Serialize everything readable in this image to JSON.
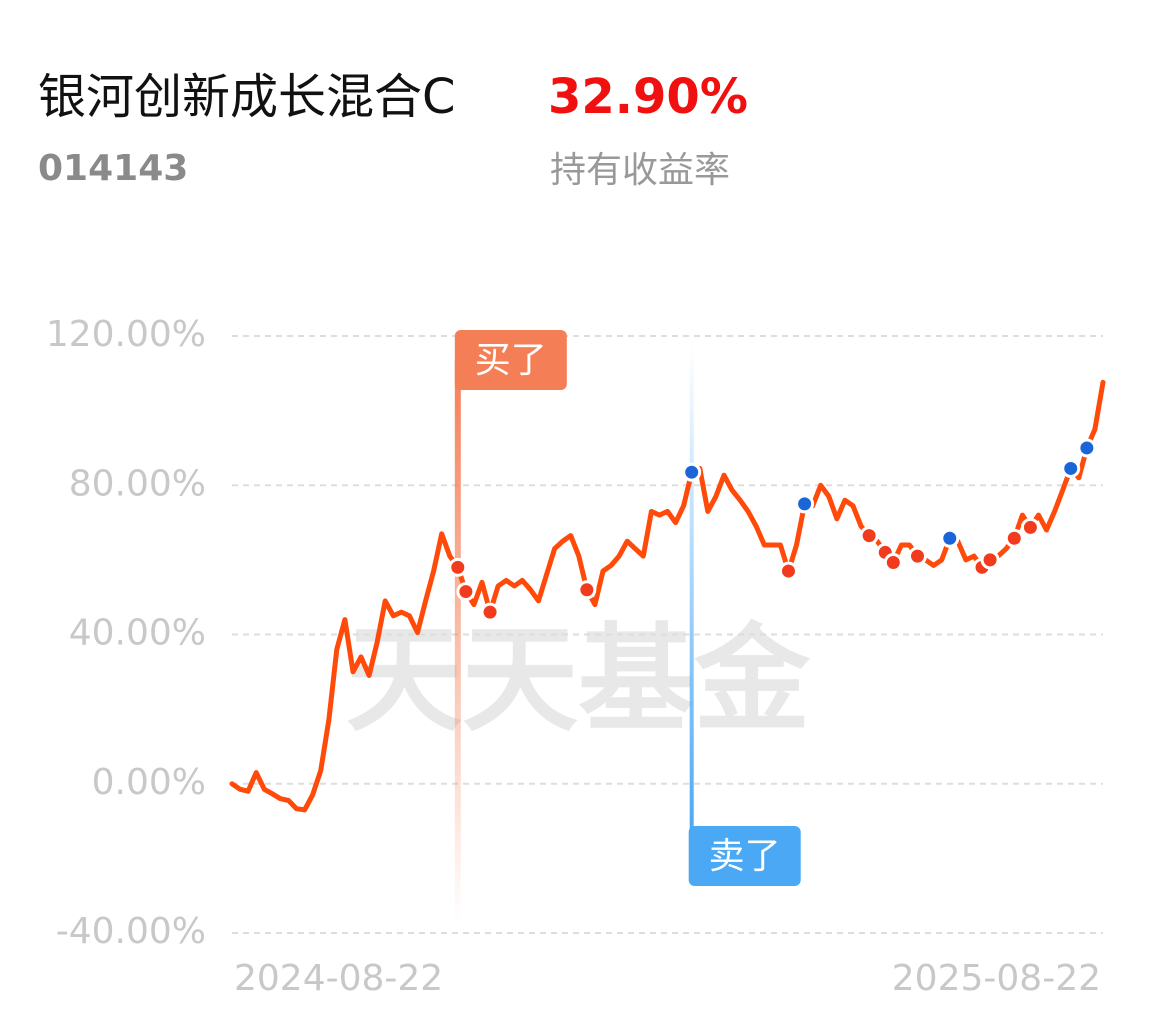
{
  "header": {
    "fund_name": "银河创新成长混合C",
    "fund_code": "014143",
    "holding_return": "32.90%",
    "holding_return_label": "持有收益率"
  },
  "chart_data": {
    "type": "line",
    "color": "#ff4a0a",
    "buy_color": "#f23a1c",
    "sell_color": "#1a66d9",
    "buy_label": "买了",
    "sell_label": "卖了",
    "watermark": "天天基金",
    "grid": true,
    "ylim": [
      -40,
      120
    ],
    "yticks": [
      {
        "value": -40,
        "label": "-40.00%"
      },
      {
        "value": 0,
        "label": "0.00%"
      },
      {
        "value": 40,
        "label": "40.00%"
      },
      {
        "value": 80,
        "label": "80.00%"
      },
      {
        "value": 120,
        "label": "120.00%"
      }
    ],
    "categories": [
      "2024-08-22",
      null,
      null,
      null,
      null,
      null,
      null,
      null,
      null,
      null,
      null,
      null,
      null,
      null,
      null,
      null,
      null,
      null,
      null,
      null,
      null,
      null,
      null,
      null,
      null,
      null,
      null,
      null,
      null,
      null,
      null,
      null,
      null,
      null,
      null,
      null,
      null,
      null,
      null,
      null,
      null,
      null,
      null,
      null,
      null,
      null,
      null,
      null,
      null,
      null,
      null,
      null,
      null,
      null,
      null,
      null,
      null,
      null,
      null,
      null,
      null,
      null,
      null,
      null,
      null,
      null,
      null,
      null,
      null,
      null,
      null,
      null,
      null,
      null,
      null,
      null,
      null,
      null,
      null,
      null,
      null,
      null,
      null,
      null,
      null,
      null,
      null,
      null,
      null,
      null,
      null,
      null,
      null,
      null,
      null,
      null,
      null,
      null,
      null,
      null,
      null,
      null,
      null,
      null,
      null,
      null,
      null,
      null,
      "2025-08-22"
    ],
    "values": [
      0,
      -1.5,
      -2,
      3,
      -1.5,
      -2.7,
      -4,
      -4.5,
      -6.7,
      -7,
      -3,
      3.5,
      17,
      36,
      44,
      30,
      34,
      29,
      38,
      49,
      45,
      46,
      45,
      40.5,
      49,
      57,
      67,
      61,
      58,
      51.5,
      48,
      54,
      46,
      53,
      54.5,
      53,
      54.5,
      52,
      49,
      56,
      63,
      65,
      66.5,
      61,
      52,
      48,
      57,
      58.5,
      61,
      65,
      63,
      61,
      73,
      72,
      73,
      70,
      74.5,
      83.5,
      84.5,
      73,
      77,
      82.7,
      78.7,
      76,
      73,
      69,
      64,
      64,
      64,
      57,
      64,
      75,
      74.5,
      80,
      77,
      71,
      76,
      74.5,
      69,
      66.5,
      65,
      62,
      59.3,
      64,
      64,
      61,
      60,
      58.5,
      60,
      65.8,
      65,
      60,
      61,
      58,
      60,
      61,
      63,
      65.8,
      72,
      68.7,
      72,
      68,
      73,
      78.7,
      84.5,
      82,
      90,
      95,
      107.6
    ],
    "buys": [
      null,
      null,
      null,
      null,
      null,
      null,
      null,
      null,
      null,
      null,
      null,
      null,
      null,
      null,
      null,
      null,
      null,
      null,
      null,
      null,
      null,
      null,
      null,
      null,
      null,
      null,
      null,
      null,
      58,
      51.5,
      null,
      null,
      46,
      null,
      null,
      null,
      null,
      null,
      null,
      null,
      null,
      null,
      null,
      null,
      52,
      null,
      null,
      null,
      null,
      null,
      null,
      null,
      null,
      null,
      null,
      null,
      null,
      null,
      null,
      null,
      null,
      null,
      null,
      null,
      null,
      null,
      null,
      null,
      null,
      57,
      null,
      null,
      null,
      null,
      null,
      null,
      null,
      null,
      null,
      66.5,
      null,
      62,
      59.3,
      null,
      null,
      61,
      null,
      null,
      null,
      null,
      null,
      null,
      null,
      58,
      60,
      null,
      null,
      65.8,
      null,
      68.7,
      null,
      null,
      null,
      null,
      null,
      null,
      null,
      null,
      null
    ],
    "sells": [
      null,
      null,
      null,
      null,
      null,
      null,
      null,
      null,
      null,
      null,
      null,
      null,
      null,
      null,
      null,
      null,
      null,
      null,
      null,
      null,
      null,
      null,
      null,
      null,
      null,
      null,
      null,
      null,
      null,
      null,
      null,
      null,
      null,
      null,
      null,
      null,
      null,
      null,
      null,
      null,
      null,
      null,
      null,
      null,
      null,
      null,
      null,
      null,
      null,
      null,
      null,
      null,
      null,
      null,
      null,
      null,
      null,
      83.5,
      null,
      null,
      null,
      null,
      null,
      null,
      null,
      null,
      null,
      null,
      null,
      null,
      null,
      75,
      null,
      null,
      null,
      null,
      null,
      null,
      null,
      null,
      null,
      null,
      null,
      null,
      null,
      null,
      null,
      null,
      null,
      65.8,
      null,
      null,
      null,
      null,
      null,
      null,
      null,
      null,
      null,
      null,
      null,
      null,
      null,
      null,
      84.5,
      null,
      90,
      null,
      null
    ]
  }
}
